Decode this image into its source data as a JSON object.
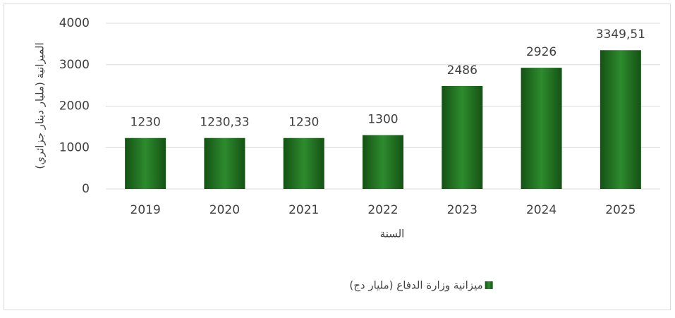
{
  "chart_data": {
    "type": "bar",
    "x_label": "السنة",
    "y_label": "الميزانية (مليار دينار جزائري)",
    "categories": [
      "2019",
      "2020",
      "2021",
      "2022",
      "2023",
      "2024",
      "2025"
    ],
    "series": [
      {
        "name": "ميزانية وزارة الدفاع (مليار دج)",
        "color": "#2e8b2e",
        "values": [
          1230,
          1230.33,
          1230,
          1300,
          2486,
          2926,
          3349.51
        ],
        "value_labels": [
          "1230",
          "1230,33",
          "1230",
          "1300",
          "2486",
          "2926",
          "3349,51"
        ]
      }
    ],
    "ylim": [
      0,
      4000
    ],
    "yticks": [
      0,
      1000,
      2000,
      3000,
      4000
    ],
    "grid": true,
    "legend": "bottom"
  }
}
